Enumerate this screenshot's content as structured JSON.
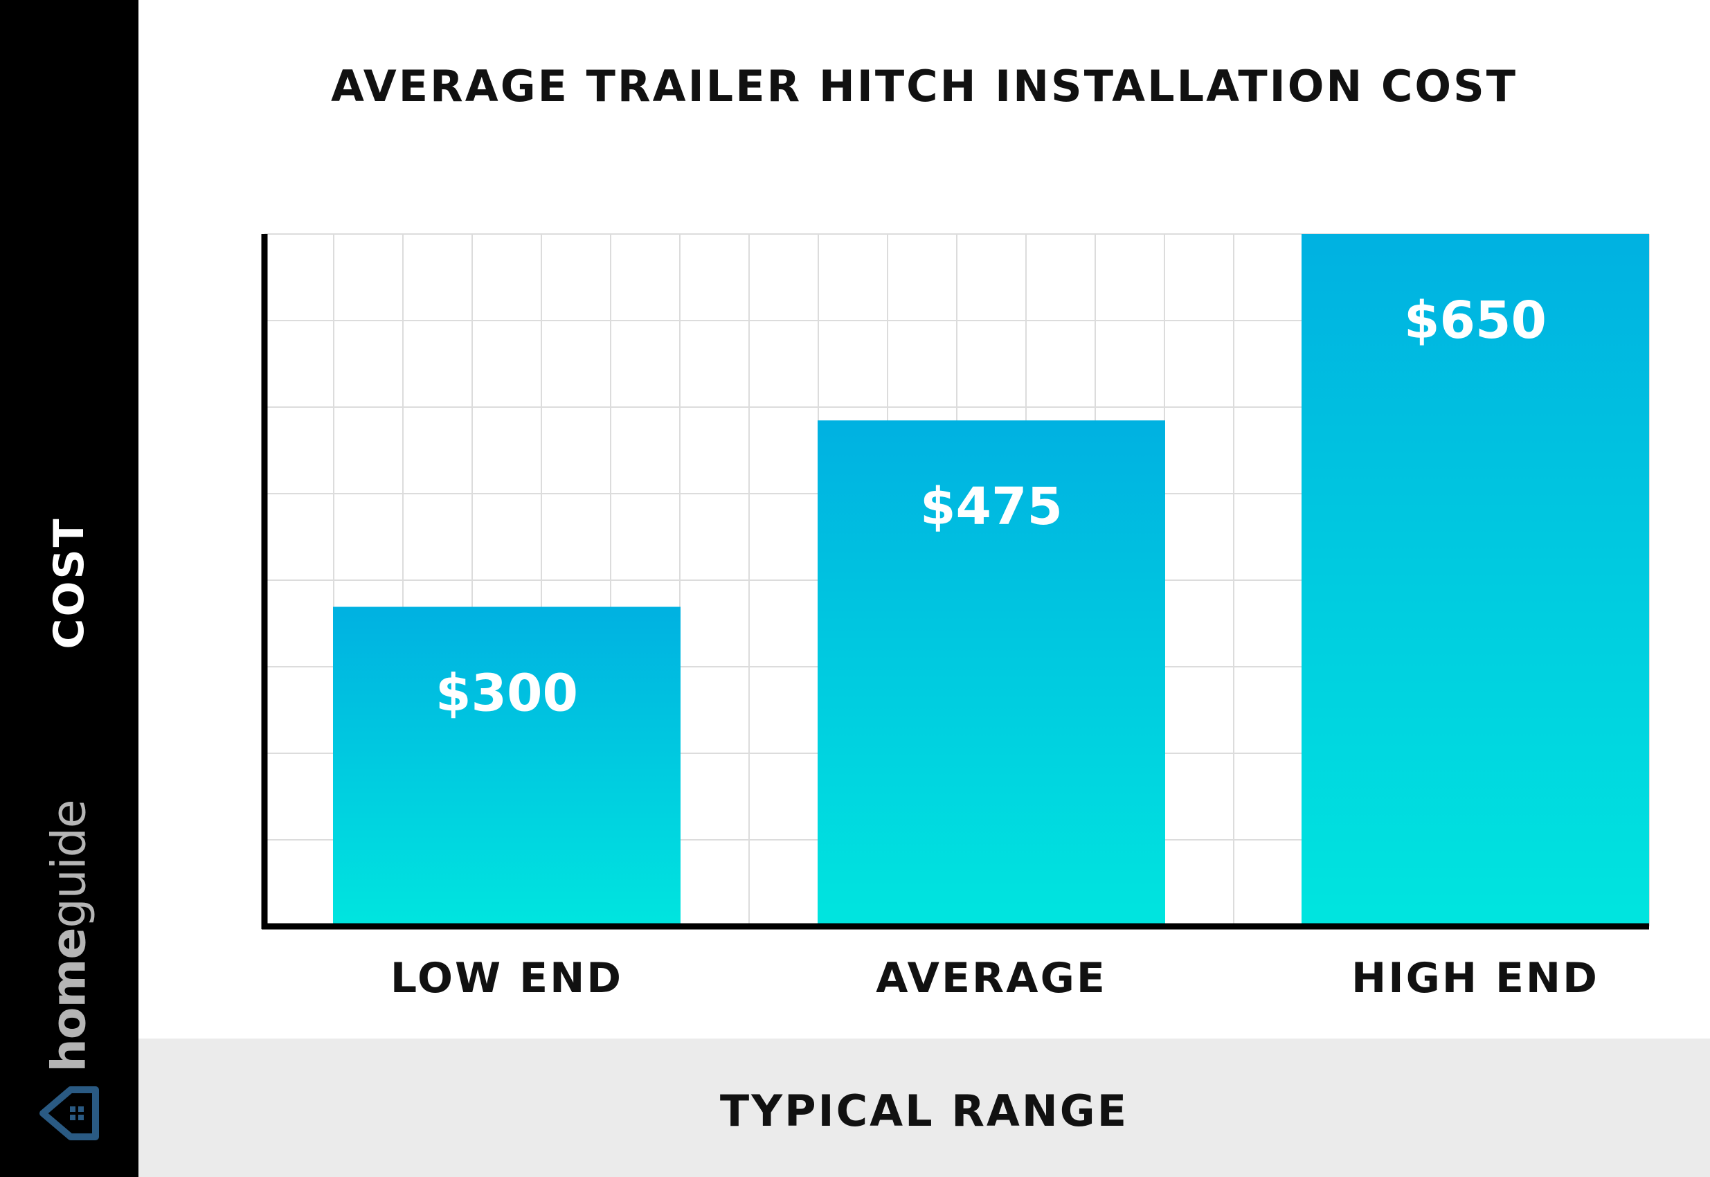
{
  "brand": {
    "name_bold": "home",
    "name_light": "guide",
    "logo_icon": "house-icon",
    "logo_color": "#2a5a83"
  },
  "chart_data": {
    "type": "bar",
    "title": "AVERAGE TRAILER HITCH INSTALLATION COST",
    "xlabel": "TYPICAL RANGE",
    "ylabel": "COST",
    "categories": [
      "LOW END",
      "AVERAGE",
      "HIGH END"
    ],
    "values": [
      300,
      475,
      650
    ],
    "value_labels": [
      "$300",
      "$475",
      "$650"
    ],
    "ylim": [
      0,
      650
    ],
    "grid": true,
    "legend": "none",
    "colors": {
      "bar_top": "#00b1e1",
      "bar_bottom": "#00e5df",
      "axis": "#000000",
      "grid": "#dcdcdc"
    }
  }
}
